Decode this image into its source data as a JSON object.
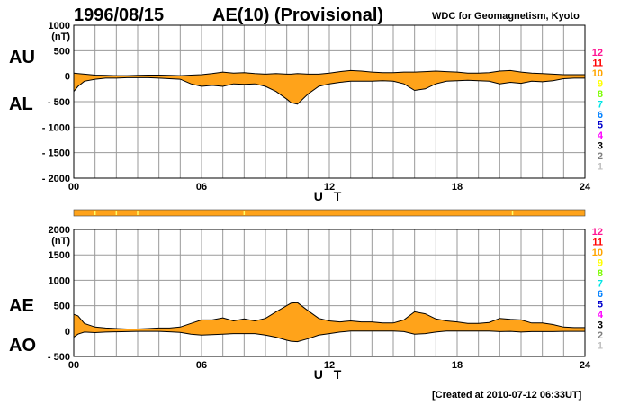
{
  "header": {
    "date": "1996/08/15",
    "title": "AE(10) (Provisional)",
    "source": "WDC for Geomagnetism, Kyoto"
  },
  "footer": {
    "created": "[Created at 2010-07-12 06:33UT]"
  },
  "legend": {
    "items": [
      {
        "label": "12",
        "color": "#ff1493"
      },
      {
        "label": "11",
        "color": "#ff0000"
      },
      {
        "label": "10",
        "color": "#ffa500"
      },
      {
        "label": "9",
        "color": "#ffff00"
      },
      {
        "label": "8",
        "color": "#7cfc00"
      },
      {
        "label": "7",
        "color": "#00e5e5"
      },
      {
        "label": "6",
        "color": "#0080ff"
      },
      {
        "label": "5",
        "color": "#0000cd"
      },
      {
        "label": "4",
        "color": "#ff00ff"
      },
      {
        "label": "3",
        "color": "#000000"
      },
      {
        "label": "2",
        "color": "#808080"
      },
      {
        "label": "1",
        "color": "#c0c0c0"
      }
    ]
  },
  "colors": {
    "fill": "#ffa31a",
    "outline": "#000000",
    "grid": "#9a9a9a",
    "station_bar": "#ffa31a",
    "station_marker": "#ffff66"
  },
  "chart_data": [
    {
      "type": "area",
      "name": "AU/AL",
      "label_upper": "AU",
      "label_lower": "AL",
      "ylabel": "(nT)",
      "xlabel": "U T",
      "ylim": [
        -2000,
        1000
      ],
      "y_ticks": [
        1000,
        500,
        0,
        -500,
        -1000,
        -1500,
        -2000
      ],
      "y_tick_labels": [
        "1000",
        "500",
        "0",
        "- 500",
        "- 1000",
        "- 1500",
        "- 2000"
      ],
      "xlim": [
        0,
        24
      ],
      "x_ticks": [
        0,
        6,
        12,
        18,
        24
      ],
      "x_tick_labels": [
        "00",
        "06",
        "12",
        "18",
        "24"
      ],
      "grid": true,
      "x_hours": [
        0,
        0.2,
        0.5,
        1,
        1.5,
        2,
        2.5,
        3,
        3.5,
        4,
        4.5,
        5,
        5.5,
        6,
        6.5,
        7,
        7.5,
        8,
        8.5,
        9,
        9.5,
        10,
        10.2,
        10.5,
        11,
        11.5,
        12,
        12.5,
        13,
        13.5,
        14,
        14.5,
        15,
        15.5,
        16,
        16.5,
        17,
        17.5,
        18,
        18.5,
        19,
        19.5,
        20,
        20.5,
        21,
        21.5,
        22,
        22.5,
        23,
        23.5,
        24
      ],
      "upper": [
        60,
        50,
        40,
        20,
        15,
        10,
        10,
        15,
        20,
        20,
        15,
        10,
        20,
        30,
        50,
        80,
        60,
        70,
        50,
        40,
        50,
        40,
        40,
        50,
        40,
        40,
        60,
        90,
        110,
        100,
        80,
        70,
        70,
        80,
        80,
        90,
        100,
        90,
        80,
        60,
        60,
        70,
        100,
        110,
        80,
        60,
        50,
        40,
        30,
        30,
        30
      ],
      "lower": [
        -300,
        -200,
        -100,
        -60,
        -40,
        -40,
        -30,
        -30,
        -30,
        -40,
        -50,
        -60,
        -150,
        -200,
        -180,
        -200,
        -150,
        -160,
        -150,
        -200,
        -300,
        -450,
        -520,
        -550,
        -350,
        -200,
        -150,
        -120,
        -100,
        -100,
        -100,
        -90,
        -100,
        -150,
        -280,
        -250,
        -150,
        -100,
        -90,
        -80,
        -90,
        -100,
        -150,
        -120,
        -140,
        -100,
        -110,
        -90,
        -50,
        -40,
        -40
      ]
    },
    {
      "type": "area",
      "name": "AE/AO",
      "label_upper": "AE",
      "label_lower": "AO",
      "ylabel": "(nT)",
      "xlabel": "U T",
      "ylim": [
        -500,
        2000
      ],
      "y_ticks": [
        2000,
        1500,
        1000,
        500,
        0,
        -500
      ],
      "y_tick_labels": [
        "2000",
        "1500",
        "1000",
        "500",
        "0",
        "- 500"
      ],
      "xlim": [
        0,
        24
      ],
      "x_ticks": [
        0,
        6,
        12,
        18,
        24
      ],
      "x_tick_labels": [
        "00",
        "06",
        "12",
        "18",
        "24"
      ],
      "grid": true,
      "x_hours": [
        0,
        0.2,
        0.5,
        1,
        1.5,
        2,
        2.5,
        3,
        3.5,
        4,
        4.5,
        5,
        5.5,
        6,
        6.5,
        7,
        7.5,
        8,
        8.5,
        9,
        9.5,
        10,
        10.2,
        10.5,
        11,
        11.5,
        12,
        12.5,
        13,
        13.5,
        14,
        14.5,
        15,
        15.5,
        16,
        16.5,
        17,
        17.5,
        18,
        18.5,
        19,
        19.5,
        20,
        20.5,
        21,
        21.5,
        22,
        22.5,
        23,
        23.5,
        24
      ],
      "upper": [
        330,
        300,
        150,
        80,
        60,
        50,
        40,
        40,
        50,
        60,
        60,
        80,
        150,
        220,
        220,
        260,
        200,
        240,
        200,
        250,
        380,
        500,
        550,
        560,
        400,
        250,
        200,
        180,
        200,
        180,
        180,
        160,
        160,
        220,
        380,
        340,
        240,
        200,
        180,
        150,
        150,
        170,
        250,
        230,
        220,
        160,
        160,
        130,
        80,
        70,
        70
      ],
      "lower": [
        -120,
        -60,
        -20,
        -30,
        -20,
        -15,
        -10,
        -5,
        -5,
        -5,
        -15,
        -25,
        -60,
        -80,
        -70,
        -60,
        -50,
        -50,
        -50,
        -80,
        -120,
        -180,
        -200,
        -210,
        -150,
        -80,
        -50,
        -20,
        0,
        0,
        0,
        0,
        0,
        -10,
        -60,
        -50,
        -20,
        0,
        0,
        0,
        0,
        0,
        -10,
        -5,
        -20,
        -10,
        -10,
        -10,
        -5,
        -5,
        -5
      ]
    }
  ]
}
